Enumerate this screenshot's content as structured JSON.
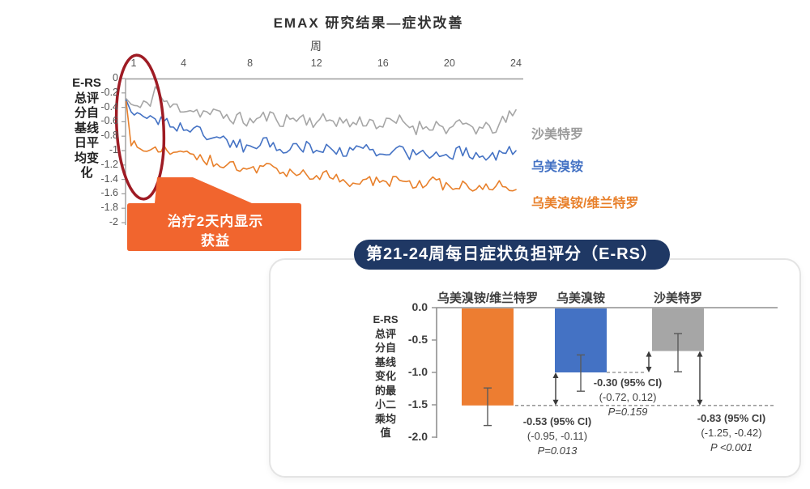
{
  "colors": {
    "orange": "#ED7D31",
    "blue": "#4472C4",
    "gray": "#A6A6A6",
    "navy": "#1F3864",
    "callout_orange": "#F1652E",
    "ellipse_red": "#9E1B24",
    "axis": "#9C9C9C",
    "annotation_text": "#3F3F3F"
  },
  "top_chart": {
    "y_axis_title_lines": [
      "E-RS",
      "总评",
      "分自",
      "基线",
      "日平",
      "均变",
      "化"
    ],
    "callout": {
      "line1": "治疗2天内显示",
      "line2": "获益"
    }
  },
  "bottom_panel": {
    "y_axis_title_lines": [
      "E-RS",
      "总评",
      "分自",
      "基线",
      "变化",
      "的最",
      "小二",
      "乘均",
      "值"
    ]
  },
  "chart_data": [
    {
      "type": "line",
      "title": "EMAX 研究结果—症状改善",
      "xlabel": "周",
      "ylabel": "E-RS总评分自基线日平均变化",
      "xlim": [
        0,
        24
      ],
      "ylim": [
        -2,
        0
      ],
      "x_ticks": [
        1,
        4,
        8,
        12,
        16,
        20,
        24
      ],
      "y_ticks": [
        0,
        -0.2,
        -0.4,
        -0.6,
        -0.8,
        -1,
        -1.2,
        -1.4,
        -1.6,
        -1.8,
        -2
      ],
      "grid": false,
      "legend_position": "right",
      "x": [
        0.55,
        0.85,
        1.4,
        2,
        2.3,
        3,
        4,
        5,
        6,
        7,
        8,
        9,
        10,
        11,
        12,
        13,
        14,
        15,
        16,
        17,
        18,
        19,
        20,
        21,
        22,
        23,
        24
      ],
      "series": [
        {
          "name": "沙美特罗",
          "color": "#A6A6A6",
          "values": [
            -0.28,
            -0.36,
            -0.42,
            -0.3,
            -0.12,
            -0.38,
            -0.4,
            -0.46,
            -0.5,
            -0.54,
            -0.6,
            -0.52,
            -0.58,
            -0.54,
            -0.6,
            -0.56,
            -0.63,
            -0.58,
            -0.65,
            -0.59,
            -0.68,
            -0.63,
            -0.7,
            -0.64,
            -0.72,
            -0.66,
            -0.45
          ]
        },
        {
          "name": "乌美溴铵",
          "color": "#4472C4",
          "values": [
            -0.3,
            -0.45,
            -0.55,
            -0.5,
            -0.55,
            -0.62,
            -0.68,
            -0.75,
            -0.82,
            -0.9,
            -0.96,
            -0.88,
            -0.98,
            -0.93,
            -1.0,
            -0.95,
            -1.03,
            -0.98,
            -1.06,
            -1.0,
            -1.08,
            -1.02,
            -1.06,
            -1.0,
            -1.08,
            -1.04,
            -1.02
          ]
        },
        {
          "name": "乌美溴铵/维兰特罗",
          "color": "#E8802B",
          "values": [
            -0.32,
            -0.9,
            -0.98,
            -1.02,
            -1.0,
            -1.0,
            -1.05,
            -1.1,
            -1.16,
            -1.22,
            -1.28,
            -1.24,
            -1.33,
            -1.28,
            -1.38,
            -1.33,
            -1.43,
            -1.38,
            -1.46,
            -1.41,
            -1.48,
            -1.44,
            -1.5,
            -1.46,
            -1.53,
            -1.49,
            -1.52
          ]
        }
      ],
      "noise_amplitude": [
        0.1,
        0.085,
        0.075
      ],
      "annotation_circle_weeks": [
        0,
        2
      ]
    },
    {
      "type": "bar",
      "title": "第21-24周每日症状负担评分（E-RS）",
      "ylabel": "E-RS总评分自基线变化的最小二乘均值",
      "ylim": [
        -2,
        0
      ],
      "y_ticks": [
        0,
        -0.5,
        -1,
        -1.5,
        -2
      ],
      "categories": [
        "乌美溴铵/维兰特罗",
        "乌美溴铵",
        "沙美特罗"
      ],
      "values": [
        -1.51,
        -1.0,
        -0.67
      ],
      "bar_colors": [
        "#ED7D31",
        "#4472C4",
        "#A6A6A6"
      ],
      "error_bars": [
        [
          -1.24,
          -1.82
        ],
        [
          -0.73,
          -1.29
        ],
        [
          -0.4,
          -0.99
        ]
      ],
      "comparisons": [
        {
          "label": "-0.30 (95% CI)",
          "ci": "(-0.72, 0.12)",
          "p": "P=0.159",
          "between": [
            "沙美特罗",
            "乌美溴铵"
          ]
        },
        {
          "label": "-0.53 (95% CI)",
          "ci": "(-0.95, -0.11)",
          "p": "P=0.013",
          "between": [
            "乌美溴铵",
            "乌美溴铵/维兰特罗"
          ]
        },
        {
          "label": "-0.83 (95% CI)",
          "ci": "(-1.25, -0.42)",
          "p": "P <0.001",
          "between": [
            "沙美特罗",
            "乌美溴铵/维兰特罗"
          ]
        }
      ]
    }
  ]
}
